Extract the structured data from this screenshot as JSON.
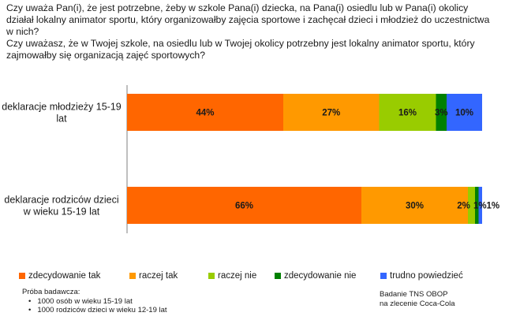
{
  "question": {
    "parent": "Czy uważa Pan(i), że jest potrzebne, żeby w szkole Pana(i) dziecka, na Pana(i) osiedlu lub w Pana(i) okolicy działał lokalny animator sportu, który organizowałby zajęcia sportowe i zachęcał dzieci i młodzież do uczestnictwa w nich?",
    "youth": "Czy uważasz, że w Twojej szkole, na osiedlu lub w Twojej okolicy potrzebny jest lokalny animator sportu, który zajmowałby się organizacją zajęć sportowych?"
  },
  "chart_data": {
    "type": "bar",
    "orientation": "horizontal",
    "stacked": true,
    "categories": [
      "deklaracje młodzieży 15-19 lat",
      "deklaracje rodziców dzieci w wieku 15-19 lat"
    ],
    "category_lines": [
      [
        "deklaracje młodzieży 15-19",
        "lat"
      ],
      [
        "deklaracje rodziców dzieci",
        "w wieku 15-19 lat"
      ]
    ],
    "series": [
      {
        "name": "zdecydowanie tak",
        "color": "#ff6600",
        "values": [
          44,
          66
        ],
        "labels": [
          "44%",
          "66%"
        ]
      },
      {
        "name": "raczej tak",
        "color": "#ff9900",
        "values": [
          27,
          30
        ],
        "labels": [
          "27%",
          "30%"
        ]
      },
      {
        "name": "raczej nie",
        "color": "#99cc00",
        "values": [
          16,
          2
        ],
        "labels": [
          "16%",
          "2%"
        ]
      },
      {
        "name": "zdecydowanie nie",
        "color": "#008000",
        "values": [
          3,
          1
        ],
        "labels": [
          "3%",
          "1%"
        ]
      },
      {
        "name": "trudno powiedzieć",
        "color": "#3366ff",
        "values": [
          10,
          1
        ],
        "labels": [
          "10%",
          "1%"
        ]
      }
    ],
    "xlim": [
      0,
      100
    ],
    "grid": false,
    "legend_position": "bottom"
  },
  "footer": {
    "sample_title": "Próba badawcza:",
    "sample_items": [
      "1000 osób w wieku 15-19 lat",
      "1000 rodziców dzieci w wieku 12-19 lat"
    ],
    "source_lines": [
      "Badanie TNS OBOP",
      "na zlecenie Coca-Cola"
    ]
  }
}
